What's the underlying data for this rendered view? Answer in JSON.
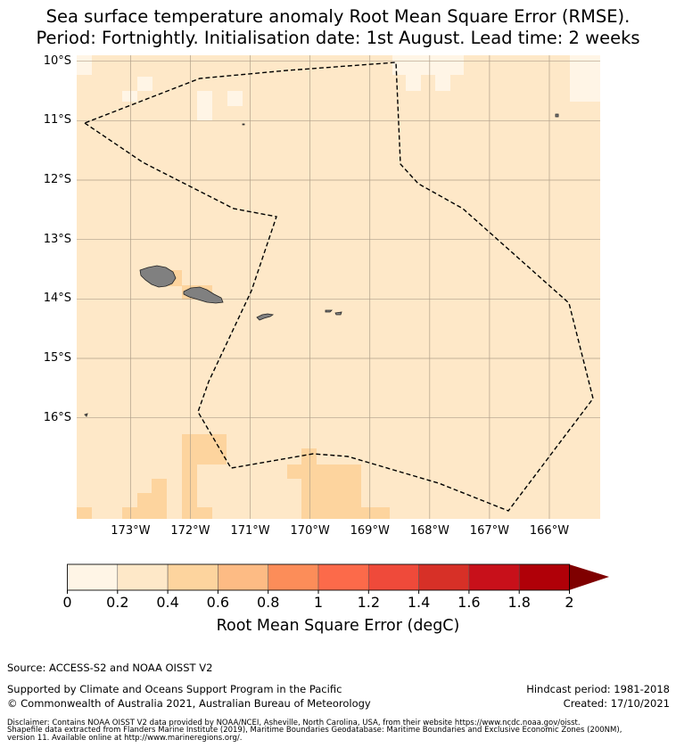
{
  "title": {
    "line1": "Sea surface temperature anomaly Root Mean Square Error (RMSE).",
    "line2": "Period: Fortnightly. Initialisation date: 1st August. Lead time: 2 weeks"
  },
  "map": {
    "lon_range": [
      -173.9,
      -165.15
    ],
    "lat_range": [
      -17.7,
      -9.9
    ],
    "lat_ticks": [
      {
        "value": -10,
        "label": "10°S"
      },
      {
        "value": -11,
        "label": "11°S"
      },
      {
        "value": -12,
        "label": "12°S"
      },
      {
        "value": -13,
        "label": "13°S"
      },
      {
        "value": -14,
        "label": "14°S"
      },
      {
        "value": -15,
        "label": "15°S"
      },
      {
        "value": -16,
        "label": "16°S"
      }
    ],
    "lon_ticks": [
      {
        "value": -173,
        "label": "173°W"
      },
      {
        "value": -172,
        "label": "172°W"
      },
      {
        "value": -171,
        "label": "171°W"
      },
      {
        "value": -170,
        "label": "170°W"
      },
      {
        "value": -169,
        "label": "169°W"
      },
      {
        "value": -168,
        "label": "168°W"
      },
      {
        "value": -167,
        "label": "167°W"
      },
      {
        "value": -166,
        "label": "166°W"
      }
    ],
    "base_fill_color": "#fee8c8",
    "land_color": "#808080",
    "grid_color": "#b0a08a",
    "eez_boundary_style": "dashed black"
  },
  "colorbar": {
    "ticks": [
      "0",
      "0.2",
      "0.4",
      "0.6",
      "0.8",
      "1",
      "1.2",
      "1.4",
      "1.6",
      "1.8",
      "2"
    ],
    "colors": [
      "#fff5e6",
      "#fee8c8",
      "#fdd49e",
      "#fdbb84",
      "#fc8d59",
      "#fc6a4a",
      "#ef4a3a",
      "#d73027",
      "#c8101a",
      "#b00008"
    ],
    "extend_color": "#7f0000",
    "label": "Root Mean Square Error (degC)"
  },
  "footer": {
    "source": "Source: ACCESS-S2 and NOAA OISST V2",
    "supported": "Supported by Climate and Oceans Support Program in the Pacific",
    "copyright": "© Commonwealth of Australia 2021, Australian Bureau of Meteorology",
    "hindcast": "Hindcast period: 1981-2018",
    "created": "Created: 17/10/2021",
    "disclaimer1": "Disclaimer: Contains NOAA OISST V2 data provided by NOAA/NCEI, Asheville, North Carolina, USA, from their website https://www.ncdc.noaa.gov/oisst.",
    "disclaimer2": "Shapefile data extracted from Flanders Marine Institute (2019), Maritime Boundaries Geodatabase: Maritime Boundaries and Exclusive Economic Zones (200NM),",
    "disclaimer3": "version 11. Available online at http://www.marineregions.org/."
  }
}
